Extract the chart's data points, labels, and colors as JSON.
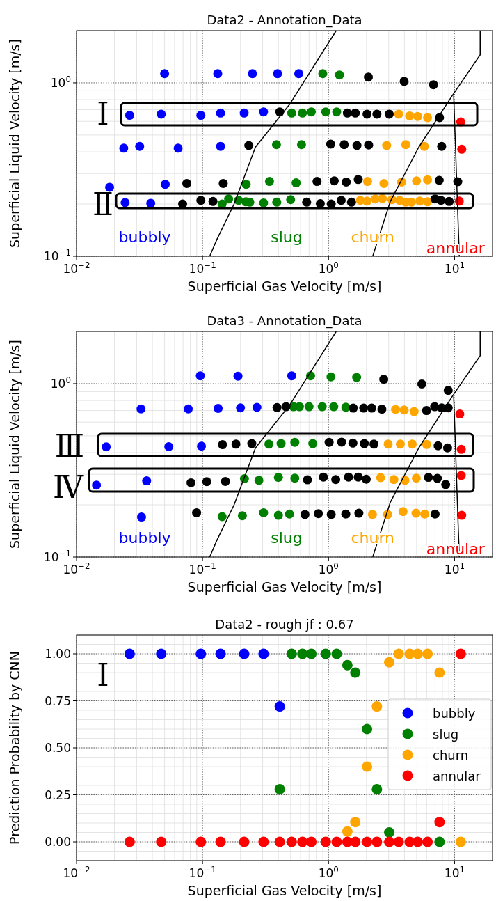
{
  "chart_data": [
    {
      "type": "scatter",
      "title": "Data2 - Annotation_Data",
      "xlabel": "Superficial Gas Velocity [m/s]",
      "ylabel": "Superficial Liquid Velocity [m/s]",
      "log": "xy",
      "xlim": [
        0.01,
        20
      ],
      "ylim": [
        0.1,
        2
      ],
      "xticks": [
        {
          "value": 0.01,
          "label": "10$^{−2}$"
        },
        {
          "value": 0.1,
          "label": "10$^{−1}$"
        },
        {
          "value": 1,
          "label": "10$^{0}$"
        },
        {
          "value": 10,
          "label": "10$^{1}$"
        }
      ],
      "yticks": [
        {
          "value": 0.1,
          "label": "10$^{−1}$"
        },
        {
          "value": 1,
          "label": "10$^{0}$"
        }
      ],
      "grid": true,
      "marker": "circle",
      "annotations": [
        "Ⅰ",
        "Ⅱ"
      ],
      "series": [
        {
          "name": "bubbly",
          "color": "#0000ff",
          "x": [
            0.05,
            0.132,
            0.249,
            0.394,
            0.58,
            0.0264,
            0.047,
            0.097,
            0.139,
            0.214,
            0.305,
            0.0237,
            0.0317,
            0.064,
            0.139,
            0.0183,
            0.0506,
            0.0243,
            0.0388
          ],
          "values": [
            1.13,
            1.13,
            1.13,
            1.13,
            1.13,
            0.65,
            0.66,
            0.65,
            0.67,
            0.67,
            0.68,
            0.42,
            0.43,
            0.42,
            0.43,
            0.25,
            0.26,
            0.204,
            0.202
          ]
        },
        {
          "name": "slug",
          "color": "#008000",
          "x": [
            0.9,
            1.22,
            0.51,
            0.62,
            0.73,
            0.95,
            1.16,
            0.386,
            0.61,
            0.222,
            0.34,
            0.553,
            0.143,
            0.161,
            0.193,
            0.221,
            0.237,
            0.305,
            0.388,
            0.5
          ],
          "values": [
            1.13,
            1.11,
            0.67,
            0.67,
            0.68,
            0.68,
            0.68,
            0.44,
            0.44,
            0.26,
            0.27,
            0.265,
            0.2,
            0.214,
            0.21,
            0.206,
            0.205,
            0.203,
            0.205,
            0.212
          ]
        },
        {
          "name": "churn",
          "color": "#ffa500",
          "x": [
            3.6,
            4.4,
            5.1,
            6.1,
            2.89,
            4.1,
            5.75,
            2.04,
            2.75,
            3.8,
            4.99,
            6.1,
            1.79,
            2.02,
            2.35,
            2.67,
            3.18,
            3.66,
            4.1,
            4.54,
            5.3,
            6.1
          ],
          "values": [
            0.66,
            0.645,
            0.64,
            0.63,
            0.435,
            0.44,
            0.43,
            0.27,
            0.263,
            0.268,
            0.272,
            0.276,
            0.21,
            0.208,
            0.214,
            0.215,
            0.212,
            0.21,
            0.205,
            0.205,
            0.208,
            0.206
          ]
        },
        {
          "name": "annular",
          "color": "#ff0000",
          "x": [
            11.2,
            11.4,
            10.9
          ],
          "values": [
            0.595,
            0.414,
            0.208
          ]
        },
        {
          "color": "#000000",
          "x": [
            2.07,
            3.98,
            6.8,
            0.41,
            1.41,
            1.63,
            2.02,
            2.42,
            3.03,
            7.6,
            0.233,
            1.04,
            1.33,
            1.68,
            2.08,
            7.9,
            0.075,
            0.146,
            0.81,
            1.11,
            1.38,
            1.72,
            7.55,
            10.6,
            0.0695,
            0.097,
            0.121,
            0.67,
            0.86,
            1.05,
            1.26,
            1.52,
            7.0,
            7.8,
            9.06
          ],
          "values": [
            1.08,
            1.02,
            0.975,
            0.68,
            0.67,
            0.67,
            0.66,
            0.66,
            0.66,
            0.63,
            0.435,
            0.443,
            0.44,
            0.435,
            0.438,
            0.43,
            0.263,
            0.263,
            0.27,
            0.272,
            0.268,
            0.277,
            0.274,
            0.269,
            0.2,
            0.21,
            0.207,
            0.205,
            0.201,
            0.2,
            0.21,
            0.205,
            0.214,
            0.21,
            0.207
          ]
        },
        {
          "type": "line",
          "marker": "none",
          "color": "#000000",
          "x": [
            0.114,
            0.13,
            0.178,
            0.263,
            0.49,
            1.15
          ],
          "values": [
            0.1,
            0.125,
            0.2,
            0.426,
            0.75,
            2.0
          ]
        },
        {
          "type": "line",
          "marker": "none",
          "color": "#000000",
          "x": [
            2.24,
            3.09,
            5.2,
            9.6,
            15.96,
            15.96
          ],
          "values": [
            0.1,
            0.207,
            0.426,
            0.845,
            1.45,
            2.0
          ]
        },
        {
          "type": "line",
          "marker": "none",
          "color": "#000000",
          "x": [
            9.84,
            10.9
          ],
          "values": [
            0.845,
            0.1
          ]
        }
      ]
    },
    {
      "type": "scatter",
      "title": "Data3 - Annotation_Data",
      "xlabel": "Superficial Gas Velocity [m/s]",
      "ylabel": "Superficial Liquid Velocity [m/s]",
      "log": "xy",
      "xlim": [
        0.01,
        20
      ],
      "ylim": [
        0.1,
        2
      ],
      "xticks": [
        {
          "value": 0.01,
          "label": "10$^{−2}$"
        },
        {
          "value": 0.1,
          "label": "10$^{−1}$"
        },
        {
          "value": 1,
          "label": "10$^{0}$"
        },
        {
          "value": 10,
          "label": "10$^{1}$"
        }
      ],
      "yticks": [
        {
          "value": 0.1,
          "label": "10$^{−1}$"
        },
        {
          "value": 1,
          "label": "10$^{0}$"
        }
      ],
      "grid": true,
      "marker": "circle",
      "annotations": [
        "Ⅲ",
        "Ⅳ"
      ],
      "series": [
        {
          "name": "bubbly",
          "color": "#0000ff",
          "x": [
            0.096,
            0.191,
            0.51,
            0.0325,
            0.077,
            0.133,
            0.2,
            0.27,
            0.0172,
            0.054,
            0.098,
            0.0144,
            0.036,
            0.0328
          ],
          "values": [
            1.11,
            1.105,
            1.11,
            0.715,
            0.715,
            0.72,
            0.725,
            0.73,
            0.432,
            0.433,
            0.436,
            0.26,
            0.275,
            0.17
          ]
        },
        {
          "name": "slug",
          "color": "#008000",
          "x": [
            0.72,
            1.045,
            1.67,
            0.527,
            0.587,
            0.7,
            0.89,
            1.1,
            1.37,
            0.336,
            0.42,
            0.54,
            0.75,
            0.215,
            0.28,
            0.4,
            0.54,
            0.143,
            0.207,
            0.305,
            0.4,
            0.49
          ],
          "values": [
            1.11,
            1.094,
            1.086,
            0.736,
            0.736,
            0.736,
            0.736,
            0.736,
            0.731,
            0.448,
            0.451,
            0.459,
            0.451,
            0.283,
            0.277,
            0.288,
            0.285,
            0.171,
            0.173,
            0.18,
            0.174,
            0.177
          ]
        },
        {
          "name": "churn",
          "color": "#ffa500",
          "x": [
            3.4,
            3.98,
            4.77,
            2.97,
            3.71,
            4.61,
            6.0,
            2.59,
            3.3,
            4.04,
            4.97,
            2.23,
            2.94,
            3.9,
            4.94,
            5.8
          ],
          "values": [
            0.71,
            0.705,
            0.69,
            0.448,
            0.448,
            0.448,
            0.446,
            0.287,
            0.28,
            0.277,
            0.285,
            0.176,
            0.176,
            0.183,
            0.179,
            0.177
          ]
        },
        {
          "name": "annular",
          "color": "#ff0000",
          "x": [
            11.0,
            11.3,
            11.3,
            11.4
          ],
          "values": [
            0.668,
            0.418,
            0.295,
            0.174
          ]
        },
        {
          "color": "#000000",
          "x": [
            2.74,
            5.5,
            8.9,
            0.39,
            0.46,
            1.57,
            1.9,
            2.2,
            2.65,
            5.99,
            6.95,
            7.9,
            8.9,
            0.144,
            0.184,
            0.246,
            1.01,
            1.27,
            1.56,
            1.92,
            2.29,
            7.4,
            8.8,
            0.081,
            0.108,
            0.152,
            0.68,
            0.91,
            1.14,
            1.44,
            1.72,
            1.99,
            6.2,
            7.3,
            8.5,
            0.0897,
            0.65,
            0.83,
            1.05,
            1.37,
            1.74,
            7.0
          ],
          "values": [
            1.06,
            0.995,
            0.914,
            0.728,
            0.736,
            0.723,
            0.723,
            0.723,
            0.713,
            0.7,
            0.736,
            0.725,
            0.725,
            0.445,
            0.448,
            0.451,
            0.459,
            0.46,
            0.454,
            0.451,
            0.448,
            0.438,
            0.426,
            0.268,
            0.272,
            0.273,
            0.279,
            0.289,
            0.28,
            0.289,
            0.289,
            0.281,
            0.288,
            0.284,
            0.262,
            0.18,
            0.176,
            0.178,
            0.176,
            0.177,
            0.179,
            0.177
          ]
        },
        {
          "type": "line",
          "marker": "none",
          "color": "#000000",
          "x": [
            0.114,
            0.13,
            0.178,
            0.263,
            0.49,
            1.15
          ],
          "values": [
            0.1,
            0.125,
            0.2,
            0.426,
            0.75,
            2.0
          ]
        },
        {
          "type": "line",
          "marker": "none",
          "color": "#000000",
          "x": [
            2.24,
            3.09,
            5.2,
            9.6,
            15.96,
            15.96
          ],
          "values": [
            0.1,
            0.207,
            0.426,
            0.845,
            1.45,
            2.0
          ]
        },
        {
          "type": "line",
          "marker": "none",
          "color": "#000000",
          "x": [
            9.84,
            10.9
          ],
          "values": [
            0.845,
            0.1
          ]
        }
      ]
    },
    {
      "type": "scatter",
      "title": "Data2 - rough jf : 0.67",
      "xlabel": "Superficial Gas Velocity [m/s]",
      "ylabel": "Prediction Probability by CNN",
      "log": "x",
      "xlim": [
        0.01,
        20
      ],
      "ylim": [
        -0.1,
        1.1
      ],
      "xticks": [
        {
          "value": 0.01,
          "label": "10$^{−2}$"
        },
        {
          "value": 0.1,
          "label": "10$^{−1}$"
        },
        {
          "value": 1,
          "label": "10$^{0}$"
        },
        {
          "value": 10,
          "label": "10$^{1}$"
        }
      ],
      "yticks": [
        {
          "value": 0,
          "label": "0.00"
        },
        {
          "value": 0.25,
          "label": "0.25"
        },
        {
          "value": 0.5,
          "label": "0.50"
        },
        {
          "value": 0.75,
          "label": "0.75"
        },
        {
          "value": 1,
          "label": "1.00"
        }
      ],
      "grid": true,
      "marker": "circle",
      "legend": "right",
      "annotations": [
        "Ⅰ"
      ],
      "x": [
        0.0264,
        0.047,
        0.097,
        0.139,
        0.214,
        0.305,
        0.41,
        0.51,
        0.62,
        0.73,
        0.95,
        1.16,
        1.41,
        1.63,
        2.02,
        2.42,
        3.03,
        3.6,
        4.4,
        5.1,
        6.1,
        7.6,
        11.2
      ],
      "series": [
        {
          "name": "bubbly",
          "color": "#0000ff",
          "values": [
            1,
            1,
            1,
            1,
            1,
            1,
            0.72,
            null,
            null,
            null,
            null,
            null,
            null,
            null,
            null,
            null,
            null,
            null,
            null,
            null,
            null,
            null,
            null
          ]
        },
        {
          "name": "slug",
          "color": "#008000",
          "values": [
            null,
            null,
            null,
            null,
            null,
            null,
            0.28,
            1,
            1,
            1,
            1,
            1,
            0.94,
            0.9,
            0.6,
            0.28,
            0.05,
            null,
            null,
            null,
            null,
            0,
            null
          ]
        },
        {
          "name": "churn",
          "color": "#ffa500",
          "values": [
            null,
            null,
            null,
            null,
            null,
            null,
            null,
            null,
            null,
            null,
            null,
            null,
            0.055,
            0.105,
            0.4,
            0.72,
            0.955,
            1,
            1,
            1,
            1,
            0.9,
            0
          ]
        },
        {
          "name": "annular",
          "color": "#ff0000",
          "values": [
            0,
            0,
            0,
            0,
            0,
            0,
            0,
            0,
            0,
            0,
            0,
            0,
            0,
            0,
            0,
            0,
            0,
            0,
            0,
            0,
            0,
            0.105,
            1
          ]
        }
      ]
    }
  ]
}
